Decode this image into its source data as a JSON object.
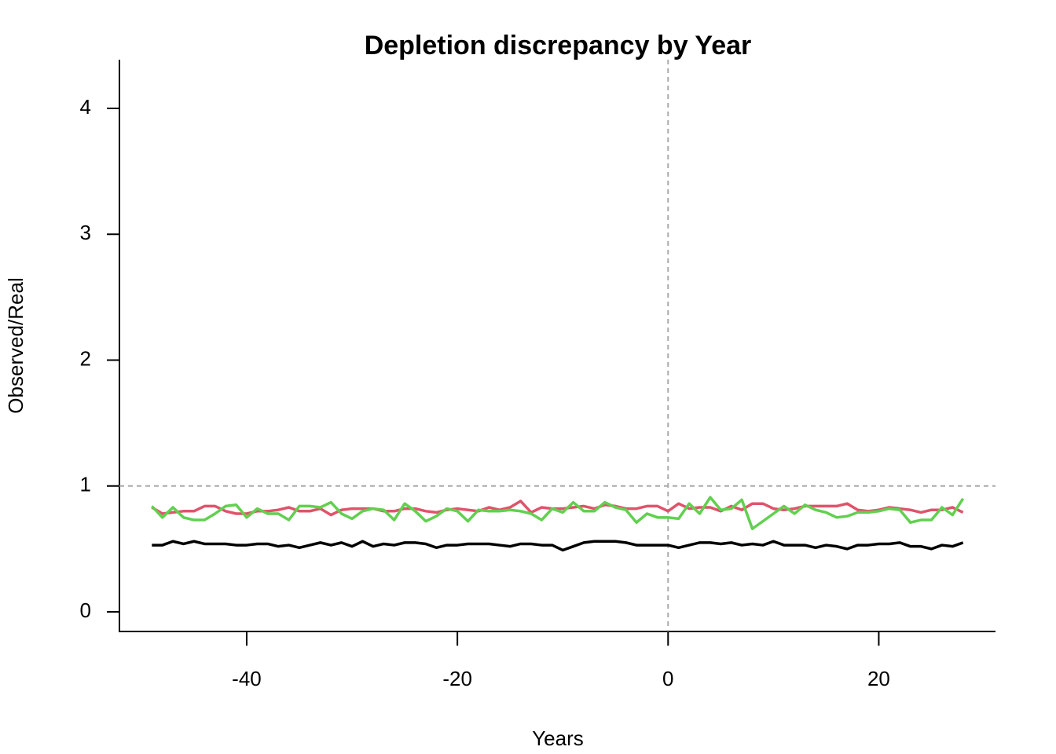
{
  "chart_data": {
    "type": "line",
    "title": "Depletion discrepancy by Year",
    "x_label": "Years",
    "y_label": "Observed/Real",
    "x": [
      -49,
      -48,
      -47,
      -46,
      -45,
      -44,
      -43,
      -42,
      -41,
      -40,
      -39,
      -38,
      -37,
      -36,
      -35,
      -34,
      -33,
      -32,
      -31,
      -30,
      -29,
      -28,
      -27,
      -26,
      -25,
      -24,
      -23,
      -22,
      -21,
      -20,
      -19,
      -18,
      -17,
      -16,
      -15,
      -14,
      -13,
      -12,
      -11,
      -10,
      -9,
      -8,
      -7,
      -6,
      -5,
      -4,
      -3,
      -2,
      -1,
      0,
      1,
      2,
      3,
      4,
      5,
      6,
      7,
      8,
      9,
      10,
      11,
      12,
      13,
      14,
      15,
      16,
      17,
      18,
      19,
      20,
      21,
      22,
      23,
      24,
      25,
      26,
      27,
      28
    ],
    "series": [
      {
        "color": "#000000",
        "values": [
          0.53,
          0.53,
          0.56,
          0.54,
          0.56,
          0.54,
          0.54,
          0.54,
          0.53,
          0.53,
          0.54,
          0.54,
          0.52,
          0.53,
          0.51,
          0.53,
          0.55,
          0.53,
          0.55,
          0.52,
          0.56,
          0.52,
          0.54,
          0.53,
          0.55,
          0.55,
          0.54,
          0.51,
          0.53,
          0.53,
          0.54,
          0.54,
          0.54,
          0.53,
          0.52,
          0.54,
          0.54,
          0.53,
          0.53,
          0.49,
          0.52,
          0.55,
          0.56,
          0.56,
          0.56,
          0.55,
          0.53,
          0.53,
          0.53,
          0.53,
          0.51,
          0.53,
          0.55,
          0.55,
          0.54,
          0.55,
          0.53,
          0.54,
          0.53,
          0.56,
          0.53,
          0.53,
          0.53,
          0.51,
          0.53,
          0.52,
          0.5,
          0.53,
          0.53,
          0.54,
          0.54,
          0.55,
          0.52,
          0.52,
          0.5,
          0.53,
          0.52,
          0.55
        ]
      },
      {
        "color": "#DF536B",
        "values": [
          0.83,
          0.78,
          0.79,
          0.8,
          0.8,
          0.84,
          0.84,
          0.8,
          0.78,
          0.78,
          0.8,
          0.8,
          0.81,
          0.83,
          0.8,
          0.8,
          0.82,
          0.77,
          0.81,
          0.82,
          0.82,
          0.82,
          0.8,
          0.8,
          0.82,
          0.82,
          0.8,
          0.79,
          0.81,
          0.82,
          0.81,
          0.8,
          0.83,
          0.81,
          0.83,
          0.88,
          0.79,
          0.83,
          0.82,
          0.82,
          0.83,
          0.84,
          0.82,
          0.85,
          0.84,
          0.82,
          0.82,
          0.84,
          0.84,
          0.8,
          0.86,
          0.82,
          0.83,
          0.83,
          0.8,
          0.84,
          0.81,
          0.86,
          0.86,
          0.82,
          0.81,
          0.82,
          0.84,
          0.84,
          0.84,
          0.84,
          0.86,
          0.81,
          0.8,
          0.81,
          0.83,
          0.82,
          0.81,
          0.79,
          0.81,
          0.81,
          0.83,
          0.79
        ]
      },
      {
        "color": "#61D04F",
        "values": [
          0.84,
          0.75,
          0.83,
          0.75,
          0.73,
          0.73,
          0.78,
          0.84,
          0.85,
          0.75,
          0.82,
          0.78,
          0.78,
          0.73,
          0.84,
          0.84,
          0.83,
          0.87,
          0.78,
          0.74,
          0.8,
          0.82,
          0.81,
          0.73,
          0.86,
          0.8,
          0.72,
          0.76,
          0.82,
          0.8,
          0.72,
          0.81,
          0.8,
          0.8,
          0.81,
          0.8,
          0.78,
          0.73,
          0.82,
          0.79,
          0.87,
          0.8,
          0.8,
          0.87,
          0.83,
          0.81,
          0.71,
          0.78,
          0.75,
          0.75,
          0.74,
          0.86,
          0.78,
          0.91,
          0.81,
          0.82,
          0.89,
          0.66,
          0.72,
          0.78,
          0.84,
          0.78,
          0.85,
          0.81,
          0.79,
          0.75,
          0.76,
          0.79,
          0.79,
          0.8,
          0.82,
          0.81,
          0.71,
          0.73,
          0.73,
          0.83,
          0.77,
          0.9
        ]
      }
    ],
    "xlim": [
      -52.08,
      31.08
    ],
    "ylim": [
      -0.156,
      4.387
    ],
    "xticks": [
      -40,
      -20,
      0,
      20
    ],
    "yticks": [
      0,
      1,
      2,
      3,
      4
    ],
    "hlines": [
      1
    ],
    "vlines": [
      0
    ],
    "reference_color": "#aaaaaa",
    "grid": false
  }
}
